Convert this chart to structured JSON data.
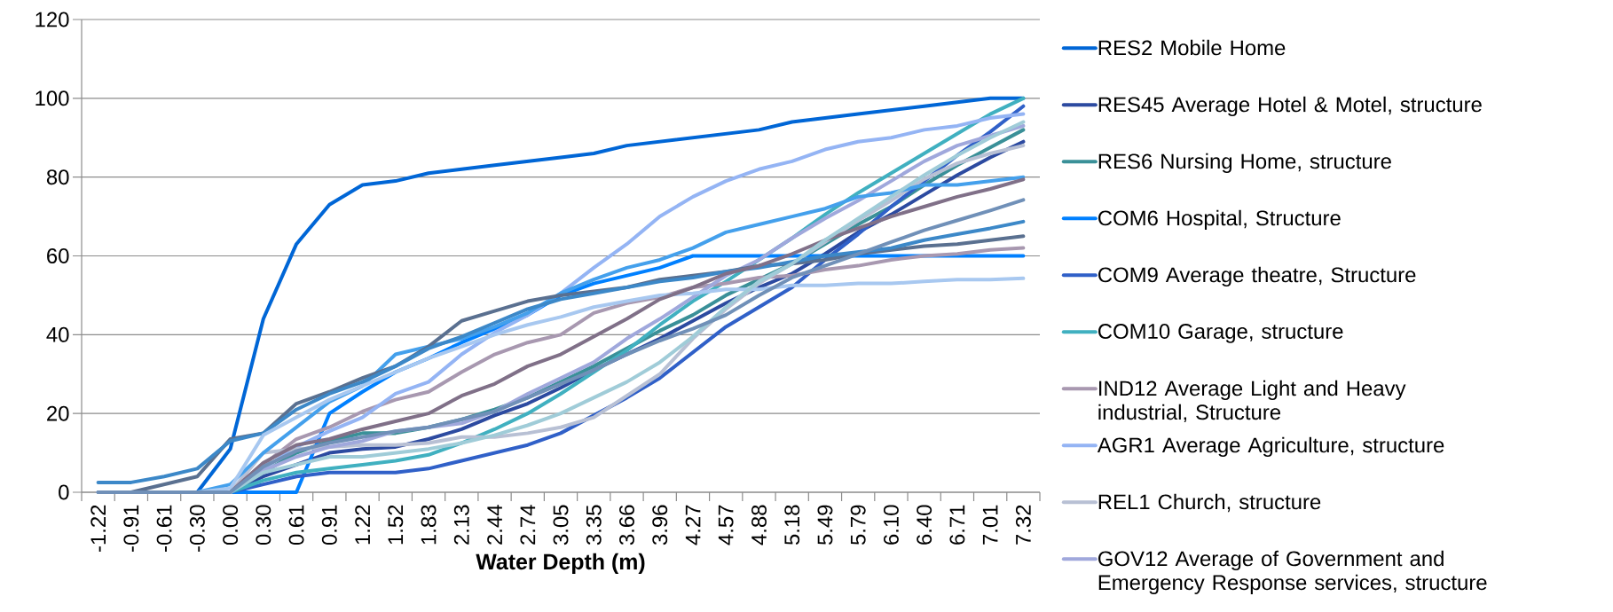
{
  "chart_data": {
    "type": "line",
    "xlabel": "Water Depth (m)",
    "categories": [
      "-1.22",
      "-0.91",
      "-0.61",
      "-0.30",
      "0.00",
      "0.30",
      "0.61",
      "0.91",
      "1.22",
      "1.52",
      "1.83",
      "2.13",
      "2.44",
      "2.74",
      "3.05",
      "3.35",
      "3.66",
      "3.96",
      "4.27",
      "4.57",
      "4.88",
      "5.18",
      "5.49",
      "5.79",
      "6.10",
      "6.40",
      "6.71",
      "7.01",
      "7.32"
    ],
    "series": [
      {
        "name": "RES2 Mobile Home",
        "color": "#0066d6",
        "values": [
          null,
          null,
          0,
          0,
          11,
          44,
          63,
          73,
          78,
          79,
          81,
          82,
          83,
          84,
          85,
          86,
          88,
          89,
          90,
          91,
          92,
          94,
          95,
          96,
          97,
          98,
          99,
          100,
          100
        ]
      },
      {
        "name": "RES45 Average Hotel & Motel, structure",
        "color": "#2c4aa0",
        "values": [
          0,
          0,
          0,
          0,
          0,
          4,
          7,
          10,
          11,
          11.5,
          13.5,
          16,
          19.5,
          22.5,
          26.5,
          31,
          35,
          39,
          43.5,
          48,
          52,
          55.5,
          60.5,
          66,
          70.5,
          75.5,
          80.5,
          85,
          89
        ]
      },
      {
        "name": "RES6 Nursing Home, structure",
        "color": "#3a9098",
        "values": [
          0,
          0,
          0,
          0,
          0,
          5,
          10,
          13,
          15,
          15,
          16.5,
          18.5,
          21,
          24,
          28,
          32,
          36.5,
          41,
          45,
          50,
          54,
          58,
          63,
          68,
          72.5,
          78,
          83,
          87.5,
          92
        ]
      },
      {
        "name": "COM6 Hospital, Structure",
        "color": "#0080ff",
        "values": [
          null,
          null,
          0,
          0,
          0,
          0,
          0,
          20,
          25.5,
          30.5,
          34,
          38,
          41.5,
          45,
          50,
          53,
          55,
          57,
          60,
          60,
          60,
          60,
          60,
          60,
          60,
          60,
          60,
          60,
          60
        ]
      },
      {
        "name": "COM9 Average theatre, Structure",
        "color": "#3060c8",
        "values": [
          null,
          null,
          0,
          0,
          0,
          2,
          4,
          5,
          5,
          5,
          6,
          8,
          10,
          12,
          15,
          19.5,
          24,
          29,
          35.5,
          42,
          47,
          52,
          59,
          65.5,
          72.5,
          79,
          85.5,
          91.5,
          98
        ]
      },
      {
        "name": "COM10 Garage, structure",
        "color": "#40b0c0",
        "values": [
          null,
          null,
          0,
          0,
          0,
          3,
          5,
          6,
          7,
          8,
          9.5,
          12.5,
          16,
          20,
          25,
          30.5,
          36,
          42.5,
          48.5,
          53.5,
          59,
          64.5,
          70.5,
          76,
          81,
          86,
          91,
          96,
          100
        ]
      },
      {
        "name": "IND12 Average Light and Heavy industrial, Structure",
        "color": "#a898b0",
        "values": [
          0,
          0,
          0,
          0,
          0,
          7,
          13.5,
          16.5,
          20.5,
          23.5,
          25.5,
          30.5,
          35,
          38,
          40,
          45.5,
          48,
          49.5,
          52,
          53,
          54.5,
          55,
          56.5,
          57.5,
          59,
          60,
          60.5,
          61.5,
          62
        ]
      },
      {
        "name": "AGR1 Average Agriculture, structure",
        "color": "#94b4f4",
        "values": [
          0,
          0,
          0,
          0,
          0,
          6,
          11.5,
          15.5,
          19,
          25,
          28,
          35,
          40.5,
          45,
          50.5,
          57,
          63,
          70,
          75,
          79,
          82,
          84,
          87,
          89,
          90,
          92,
          93,
          95,
          96
        ]
      },
      {
        "name": "REL1 Church, structure",
        "color": "#b8c0d4",
        "values": [
          0,
          0,
          0,
          0,
          0,
          10,
          11,
          11.5,
          12,
          12,
          12.5,
          14,
          14,
          15,
          16.5,
          19,
          24.5,
          30,
          39,
          46.5,
          53,
          58,
          63.5,
          69,
          74,
          79.5,
          83.5,
          86,
          88
        ]
      },
      {
        "name": "GOV12 Average of Government and Emergency Response services, structure",
        "color": "#a0a8dc",
        "values": [
          0,
          0,
          0,
          0,
          0,
          5.5,
          9,
          11.5,
          13,
          15.5,
          16.5,
          17.5,
          20.5,
          25,
          29,
          33,
          39,
          44,
          49.5,
          55,
          59,
          64.5,
          69.5,
          74,
          79,
          84,
          88,
          90.5,
          93
        ]
      },
      {
        "color": "#44a0ec",
        "values": [
          null,
          null,
          0,
          0,
          2,
          10,
          16.5,
          23,
          27,
          35,
          37,
          39,
          42,
          45.5,
          50.5,
          54,
          57,
          59,
          62,
          66,
          68,
          70,
          72,
          75,
          76,
          78,
          78,
          79,
          80
        ]
      },
      {
        "color": "#5a7090",
        "values": [
          0,
          0,
          2,
          4,
          13.5,
          15,
          22.5,
          25.5,
          29,
          32,
          37,
          43.5,
          46,
          48.5,
          50,
          51,
          52,
          54,
          55,
          56,
          57.5,
          58,
          59,
          60.5,
          61.5,
          62.5,
          63,
          64,
          65
        ]
      },
      {
        "color": "#3c88c8",
        "values": [
          2.5,
          2.5,
          4,
          6,
          13,
          15,
          21,
          25,
          28,
          32,
          36.5,
          39.5,
          43,
          46.5,
          49,
          50.5,
          52,
          53.5,
          54.5,
          56,
          57,
          58.5,
          60,
          61,
          62,
          64,
          65.5,
          67,
          68.7
        ]
      },
      {
        "color": "#a8c8f0",
        "values": [
          0,
          0,
          0,
          0,
          1,
          14.5,
          19,
          23.5,
          27,
          30.5,
          34,
          37,
          40,
          42.5,
          44.5,
          47,
          48.5,
          50,
          50.5,
          51.5,
          51.5,
          52.5,
          52.5,
          53,
          53,
          53.5,
          54,
          54,
          54.3
        ]
      },
      {
        "color": "#807088",
        "values": [
          0,
          0,
          0,
          0,
          0,
          7.5,
          12,
          13.5,
          16,
          18,
          20,
          24.5,
          27.5,
          32,
          35,
          39.5,
          44,
          49,
          52,
          55.5,
          57.5,
          60.5,
          64,
          67,
          70,
          72.5,
          75,
          77,
          79.4
        ]
      },
      {
        "color": "#a0ccd8",
        "values": [
          0,
          0,
          0,
          0,
          0,
          5,
          7,
          9,
          9,
          10,
          11,
          12.5,
          14.5,
          17,
          20,
          24,
          28,
          33,
          39.5,
          47,
          53.5,
          58,
          64,
          69.5,
          75,
          80.5,
          85.5,
          90,
          94
        ]
      },
      {
        "color": "#7090b8",
        "values": [
          0,
          0,
          0,
          0,
          0,
          6.5,
          10.5,
          12.5,
          14,
          15.5,
          16.5,
          18.5,
          20.5,
          24,
          27.5,
          31,
          35,
          38.5,
          41.5,
          45,
          50,
          54.5,
          57.5,
          60.5,
          63.5,
          66.5,
          69,
          71.5,
          74.2
        ]
      }
    ],
    "ylim": [
      0,
      120
    ],
    "yticks": [
      0,
      20,
      40,
      60,
      80,
      100,
      120
    ],
    "grid": "y",
    "legend": "right"
  }
}
